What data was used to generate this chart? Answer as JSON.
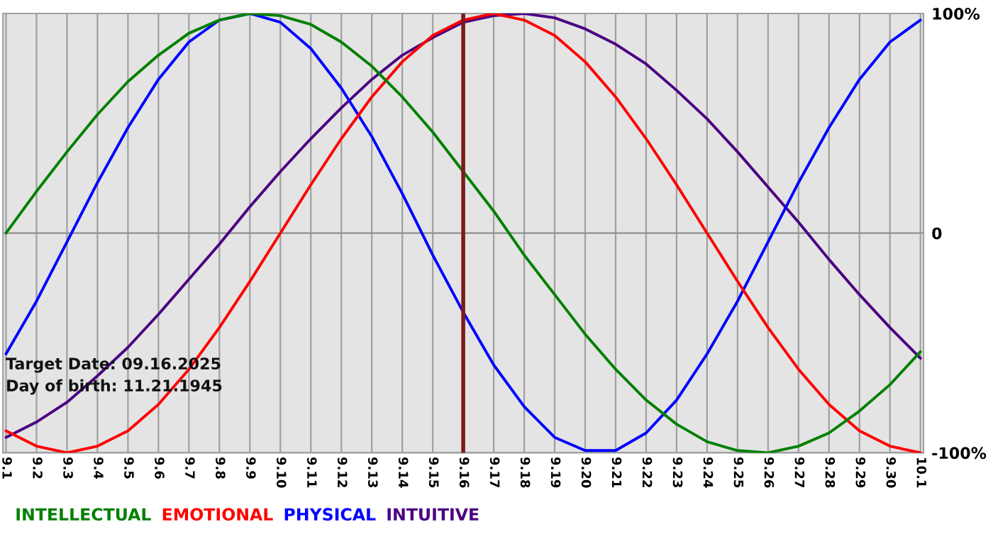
{
  "chart_data": {
    "type": "line",
    "categories": [
      "9.1",
      "9.2",
      "9.3",
      "9.4",
      "9.5",
      "9.6",
      "9.7",
      "9.8",
      "9.9",
      "9.10",
      "9.11",
      "9.12",
      "9.13",
      "9.14",
      "9.15",
      "9.16",
      "9.17",
      "9.18",
      "9.19",
      "9.20",
      "9.21",
      "9.22",
      "9.23",
      "9.24",
      "9.25",
      "9.26",
      "9.27",
      "9.28",
      "9.29",
      "9.30",
      "10.1"
    ],
    "series": [
      {
        "name": "INTELLECTUAL",
        "color": "#008000",
        "values": [
          0,
          19,
          37,
          54,
          69,
          81,
          91,
          97,
          100,
          99,
          95,
          87,
          76,
          62,
          46,
          28,
          10,
          -10,
          -28,
          -46,
          -62,
          -76,
          -87,
          -95,
          -99,
          -100,
          -97,
          -91,
          -81,
          -69,
          -54
        ]
      },
      {
        "name": "EMOTIONAL",
        "color": "#ff0000",
        "values": [
          -90,
          -97,
          -100,
          -97,
          -90,
          -78,
          -62,
          -43,
          -22,
          0,
          22,
          43,
          62,
          78,
          90,
          97,
          100,
          97,
          90,
          78,
          62,
          43,
          22,
          0,
          -22,
          -43,
          -62,
          -78,
          -90,
          -97,
          -100
        ]
      },
      {
        "name": "PHYSICAL",
        "color": "#0000ff",
        "values": [
          -55,
          -31,
          -4,
          23,
          48,
          70,
          87,
          97,
          100,
          96,
          84,
          66,
          44,
          18,
          -10,
          -36,
          -60,
          -79,
          -93,
          -99,
          -99,
          -91,
          -76,
          -55,
          -31,
          -4,
          23,
          48,
          70,
          87,
          97
        ]
      },
      {
        "name": "INTUITIVE",
        "color": "#4b0082",
        "values": [
          -93,
          -86,
          -77,
          -65,
          -52,
          -37,
          -21,
          -5,
          12,
          28,
          43,
          57,
          70,
          81,
          89,
          96,
          99,
          100,
          98,
          93,
          86,
          77,
          65,
          52,
          37,
          21,
          5,
          -12,
          -28,
          -43,
          -57
        ]
      }
    ],
    "ylim": [
      -100,
      100
    ],
    "yticks": [
      {
        "value": -100,
        "label": "-100%"
      },
      0,
      {
        "value": 100,
        "label": "100%"
      }
    ],
    "ref_lines": [
      {
        "axis": "x",
        "value": "9.16",
        "color": "#7b1c1c"
      }
    ],
    "annotations": [
      "Target Date: 09.16.2025",
      "Day of birth: 11.21.1945"
    ],
    "grid": true,
    "legend": "bottom left"
  }
}
